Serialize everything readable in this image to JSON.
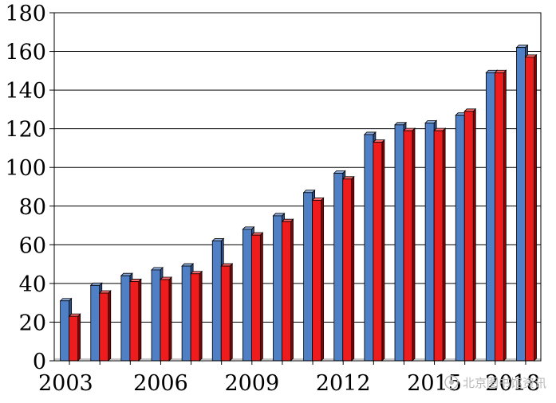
{
  "chart_data": {
    "type": "bar",
    "title": "",
    "xlabel": "",
    "ylabel": "",
    "ylim": [
      0,
      180
    ],
    "yticks": [
      0,
      20,
      40,
      60,
      80,
      100,
      120,
      140,
      160,
      180
    ],
    "grid": true,
    "legend": "none",
    "categories": [
      "2003",
      "2004",
      "2005",
      "2006",
      "2007",
      "2008",
      "2009",
      "2010",
      "2011",
      "2012",
      "2013",
      "2014",
      "2015",
      "2016",
      "2017",
      "2018"
    ],
    "x_tick_labels": [
      "2003",
      "2006",
      "2009",
      "2012",
      "2015",
      "2018"
    ],
    "series": [
      {
        "color": "#4f7fc4",
        "values": [
          31,
          39,
          44,
          47,
          49,
          62,
          68,
          75,
          87,
          97,
          117,
          122,
          123,
          127,
          149,
          162
        ]
      },
      {
        "color": "#ee1c1c",
        "values": [
          23,
          35,
          41,
          42,
          45,
          49,
          65,
          72,
          83,
          94,
          113,
          119,
          119,
          129,
          149,
          157
        ]
      }
    ]
  },
  "watermark": {
    "text": "北京图书馆资讯"
  }
}
